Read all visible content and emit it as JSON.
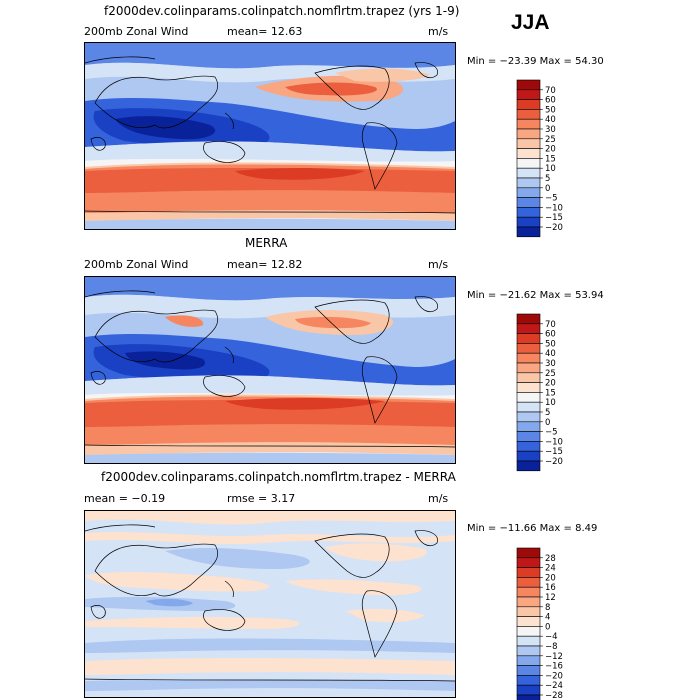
{
  "season": "JJA",
  "chart_data": [
    {
      "type": "heatmap",
      "title": "f2000dev.colinparams.colinpatch.nomflrtm.trapez (yrs 1-9)",
      "left_label": "200mb Zonal Wind",
      "stat1": "mean=  12.63",
      "units": "m/s",
      "minmax": "Min = −23.39  Max =  54.30",
      "colorbar": {
        "levels": [
          "70",
          "60",
          "50",
          "40",
          "30",
          "25",
          "20",
          "15",
          "10",
          "5",
          "0",
          "−5",
          "−10",
          "−15",
          "−20"
        ],
        "colors": [
          "#9e0a0a",
          "#c01818",
          "#dc3b24",
          "#ec5f3e",
          "#f5865f",
          "#f8a782",
          "#fac6a8",
          "#fde2cf",
          "#f5f5f5",
          "#d5e3f7",
          "#aec8f2",
          "#84a8ec",
          "#5b86e6",
          "#3563db",
          "#1a40c4",
          "#0a2299"
        ]
      }
    },
    {
      "type": "heatmap",
      "title": "MERRA",
      "left_label": "200mb Zonal Wind",
      "stat1": "mean=  12.82",
      "units": "m/s",
      "minmax": "Min = −21.62  Max =  53.94",
      "colorbar": {
        "levels": [
          "70",
          "60",
          "50",
          "40",
          "30",
          "25",
          "20",
          "15",
          "10",
          "5",
          "0",
          "−5",
          "−10",
          "−15",
          "−20"
        ],
        "colors": [
          "#9e0a0a",
          "#c01818",
          "#dc3b24",
          "#ec5f3e",
          "#f5865f",
          "#f8a782",
          "#fac6a8",
          "#fde2cf",
          "#f5f5f5",
          "#d5e3f7",
          "#aec8f2",
          "#84a8ec",
          "#5b86e6",
          "#3563db",
          "#1a40c4",
          "#0a2299"
        ]
      }
    },
    {
      "type": "heatmap",
      "title": "f2000dev.colinparams.colinpatch.nomflrtm.trapez - MERRA",
      "left_label": "mean =   −0.19",
      "stat1": "rmse =    3.17",
      "units": "m/s",
      "minmax": "Min = −11.66  Max =   8.49",
      "colorbar": {
        "levels": [
          "28",
          "24",
          "20",
          "16",
          "12",
          "8",
          "4",
          "0",
          "−4",
          "−8",
          "−12",
          "−16",
          "−20",
          "−24",
          "−28"
        ],
        "colors": [
          "#9e0a0a",
          "#c01818",
          "#dc3b24",
          "#ec5f3e",
          "#f5865f",
          "#f8a782",
          "#fac6a8",
          "#fde2cf",
          "#f5f5f5",
          "#d5e3f7",
          "#aec8f2",
          "#84a8ec",
          "#5b86e6",
          "#3563db",
          "#1a40c4",
          "#0a2299"
        ]
      }
    }
  ]
}
